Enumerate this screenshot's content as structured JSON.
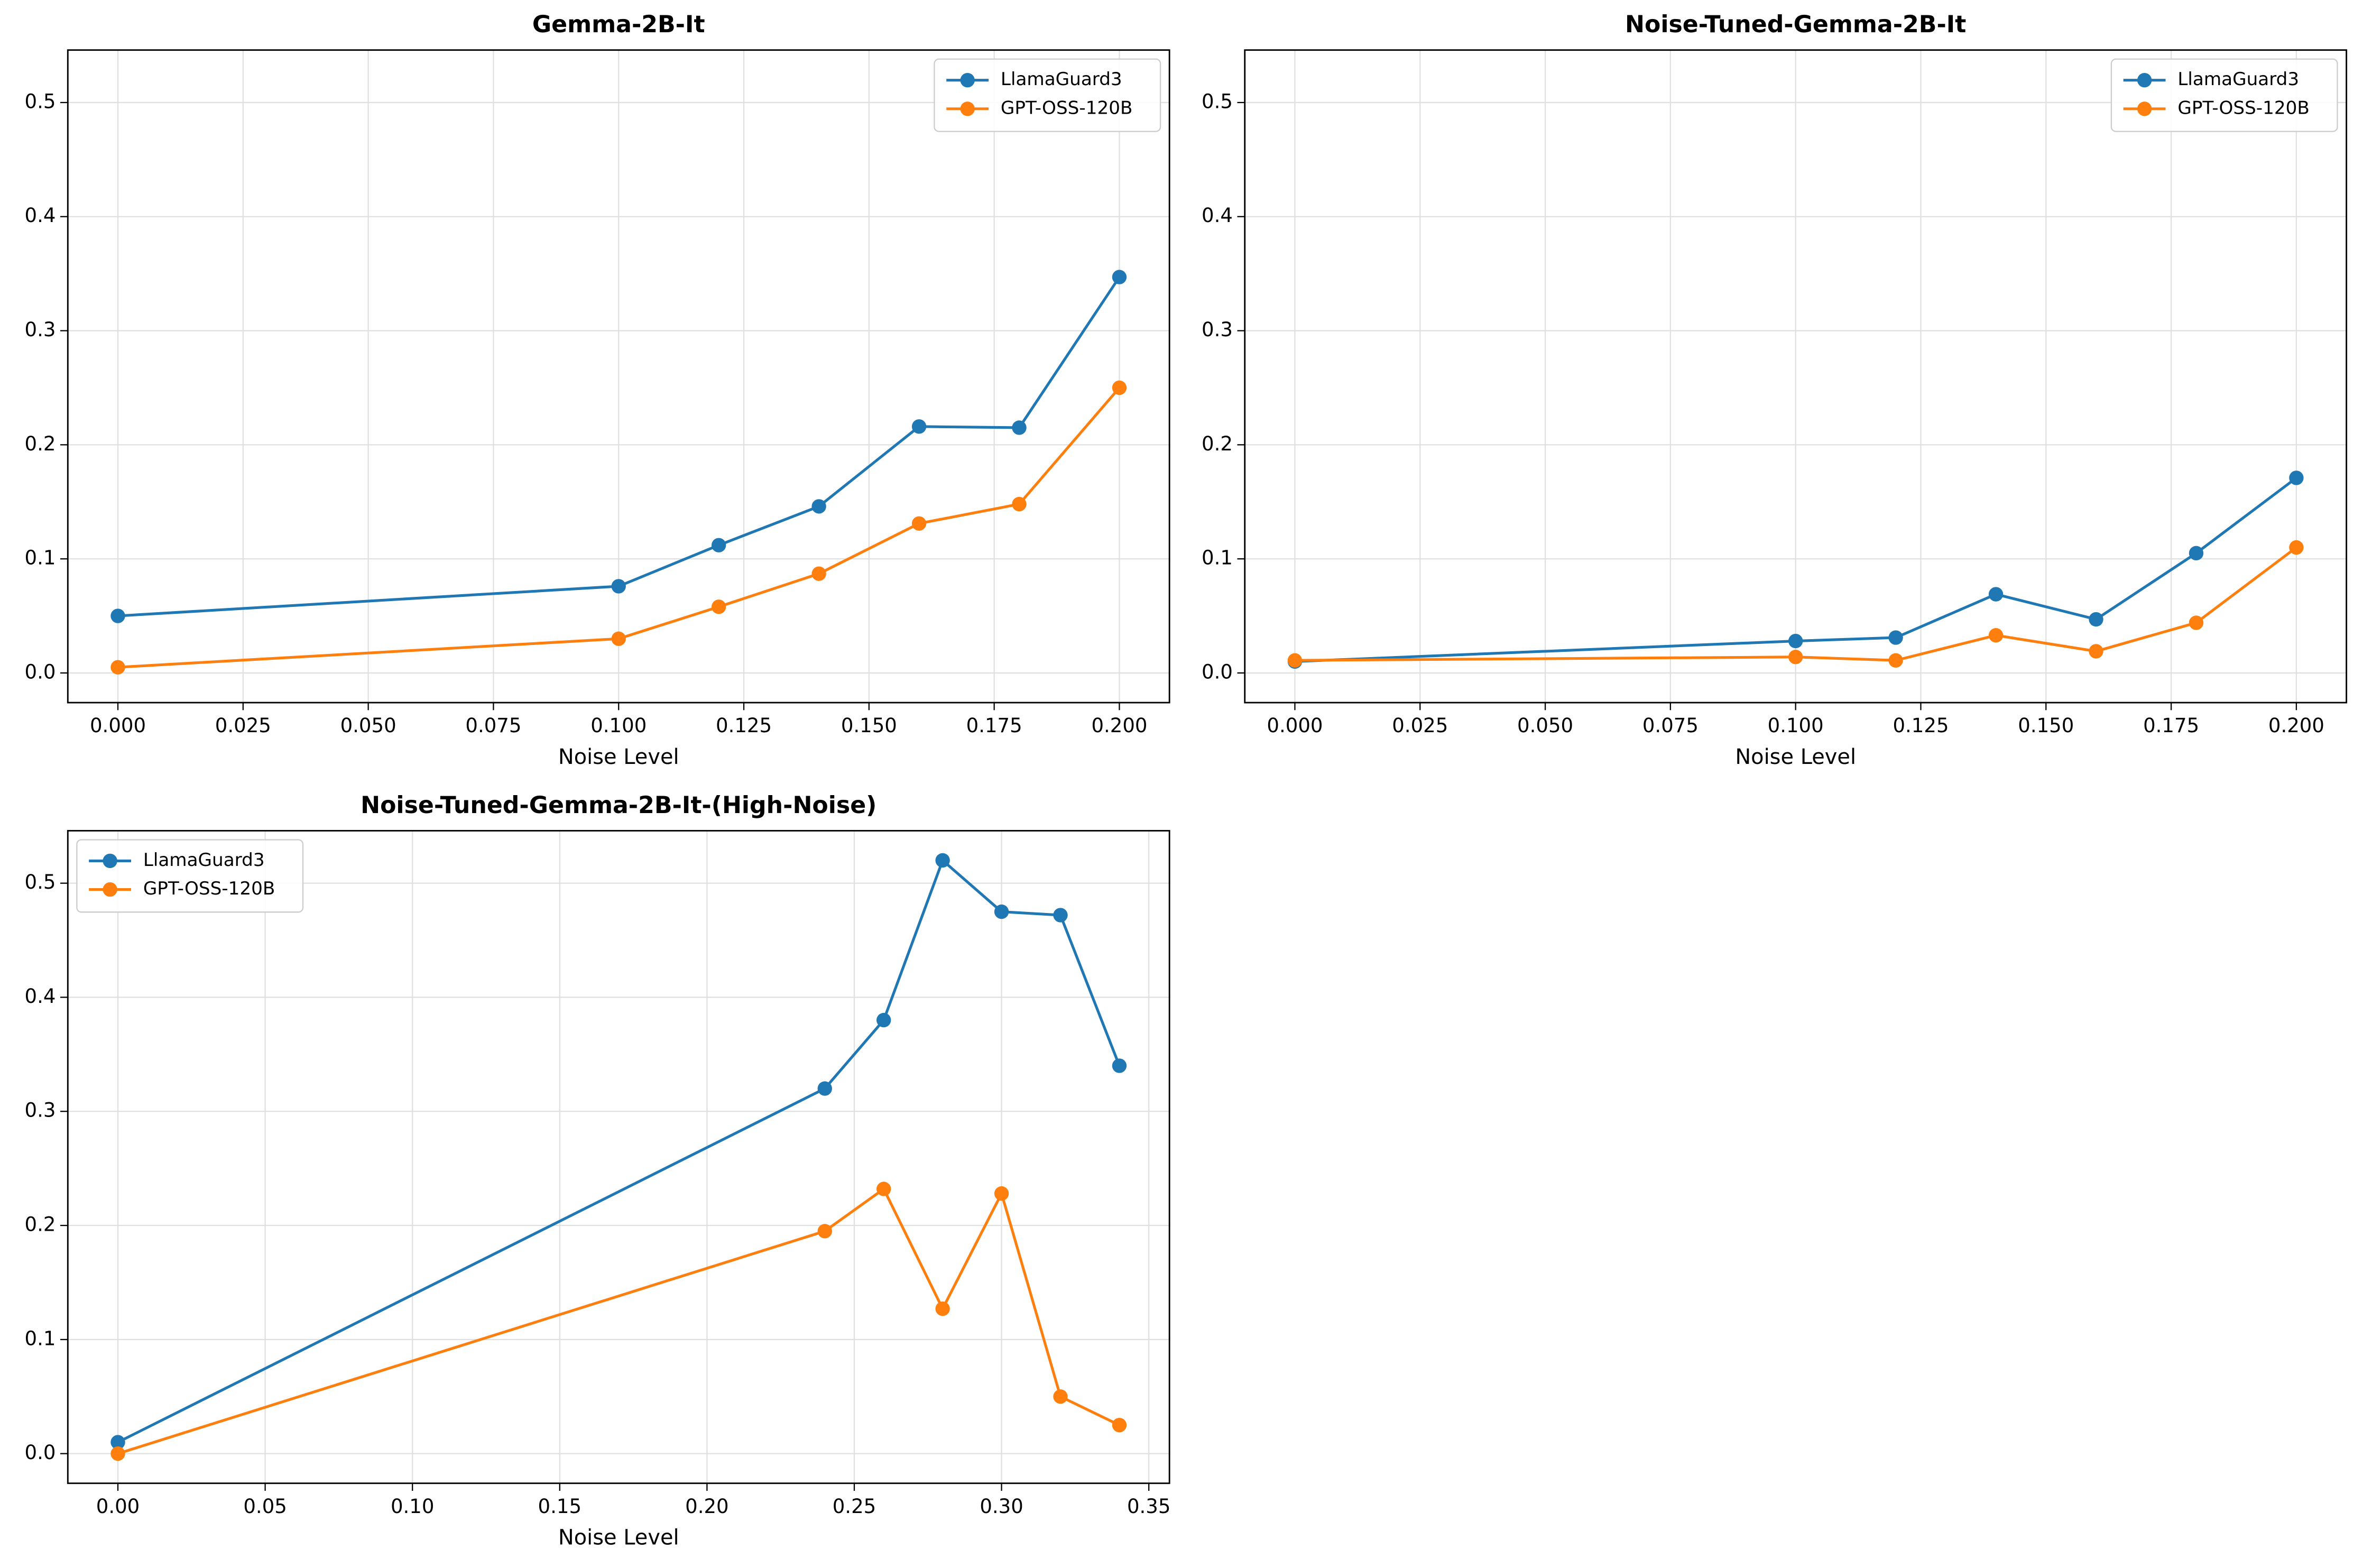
{
  "chart_data": [
    {
      "type": "line",
      "title": "Gemma-2B-It",
      "x_label": "Noise Level",
      "x": [
        0,
        0.1,
        0.12,
        0.14,
        0.16,
        0.18,
        0.2
      ],
      "series": [
        {
          "name": "LlamaGuard3",
          "color": "#1f77b4",
          "values": [
            0.05,
            0.076,
            0.112,
            0.146,
            0.216,
            0.215,
            0.347
          ]
        },
        {
          "name": "GPT-OSS-120B",
          "color": "#ff7f0e",
          "values": [
            0.005,
            0.03,
            0.058,
            0.087,
            0.131,
            0.148,
            0.25
          ]
        }
      ],
      "xlim": [
        -0.01,
        0.21
      ],
      "xticks": [
        {
          "value": 0,
          "label": "0.000"
        },
        0.025,
        {
          "value": 0.05,
          "label": "0.050"
        },
        0.075,
        {
          "value": 0.1,
          "label": "0.100"
        },
        0.125,
        {
          "value": 0.15,
          "label": "0.150"
        },
        0.175,
        {
          "value": 0.2,
          "label": "0.200"
        }
      ],
      "ylim": [
        -0.026,
        0.546
      ],
      "yticks": [
        {
          "value": 0,
          "label": "0.0"
        },
        0.1,
        0.2,
        0.3,
        0.4,
        0.5
      ],
      "grid": true,
      "legend": "upper-right"
    },
    {
      "type": "line",
      "title": "Noise-Tuned-Gemma-2B-It",
      "x_label": "Noise Level",
      "x": [
        0,
        0.1,
        0.12,
        0.14,
        0.16,
        0.18,
        0.2
      ],
      "series": [
        {
          "name": "LlamaGuard3",
          "color": "#1f77b4",
          "values": [
            0.01,
            0.028,
            0.031,
            0.069,
            0.047,
            0.105,
            0.171
          ]
        },
        {
          "name": "GPT-OSS-120B",
          "color": "#ff7f0e",
          "values": [
            0.011,
            0.014,
            0.011,
            0.033,
            0.019,
            0.044,
            0.11
          ]
        }
      ],
      "xlim": [
        -0.01,
        0.21
      ],
      "xticks": [
        {
          "value": 0,
          "label": "0.000"
        },
        0.025,
        {
          "value": 0.05,
          "label": "0.050"
        },
        0.075,
        {
          "value": 0.1,
          "label": "0.100"
        },
        0.125,
        {
          "value": 0.15,
          "label": "0.150"
        },
        0.175,
        {
          "value": 0.2,
          "label": "0.200"
        }
      ],
      "ylim": [
        -0.026,
        0.546
      ],
      "yticks": [
        {
          "value": 0,
          "label": "0.0"
        },
        0.1,
        0.2,
        0.3,
        0.4,
        0.5
      ],
      "grid": true,
      "legend": "upper-right"
    },
    {
      "type": "line",
      "title": "Noise-Tuned-Gemma-2B-It-(High-Noise)",
      "x_label": "Noise Level",
      "x": [
        0,
        0.24,
        0.26,
        0.28,
        0.3,
        0.32,
        0.34
      ],
      "series": [
        {
          "name": "LlamaGuard3",
          "color": "#1f77b4",
          "values": [
            0.01,
            0.32,
            0.38,
            0.52,
            0.475,
            0.472,
            0.34
          ]
        },
        {
          "name": "GPT-OSS-120B",
          "color": "#ff7f0e",
          "values": [
            0,
            0.195,
            0.232,
            0.127,
            0.228,
            0.05,
            0.025
          ]
        }
      ],
      "xlim": [
        -0.017,
        0.357
      ],
      "xticks": [
        {
          "value": 0,
          "label": "0.00"
        },
        0.05,
        {
          "value": 0.1,
          "label": "0.10"
        },
        0.15,
        {
          "value": 0.2,
          "label": "0.20"
        },
        0.25,
        {
          "value": 0.3,
          "label": "0.30"
        },
        0.35
      ],
      "ylim": [
        -0.026,
        0.546
      ],
      "yticks": [
        {
          "value": 0,
          "label": "0.0"
        },
        0.1,
        0.2,
        0.3,
        0.4,
        0.5
      ],
      "grid": true,
      "legend": "upper-left"
    }
  ]
}
